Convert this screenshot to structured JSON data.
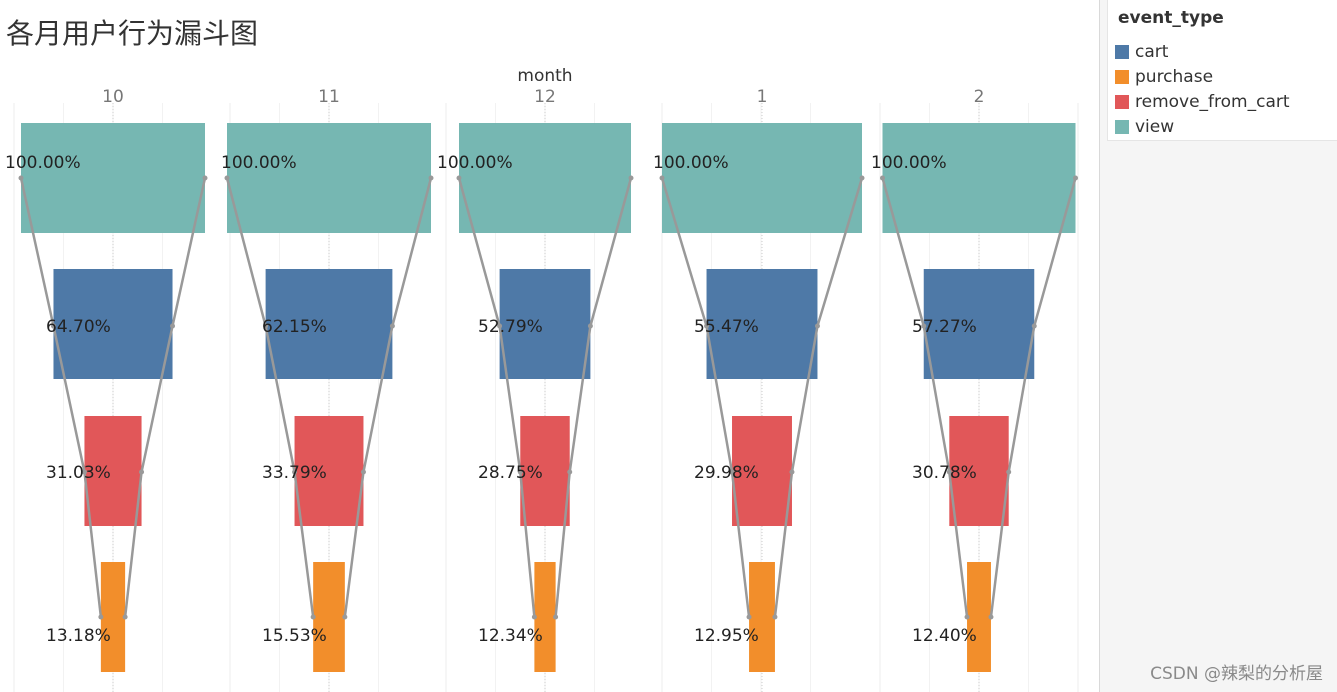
{
  "title": "各月用户行为漏斗图",
  "watermark": "CSDN @辣梨的分析屋",
  "legend": {
    "title": "event_type",
    "items": [
      {
        "label": "cart",
        "color": "#4e79a7"
      },
      {
        "label": "purchase",
        "color": "#f28e2b"
      },
      {
        "label": "remove_from_cart",
        "color": "#e15759"
      },
      {
        "label": "view",
        "color": "#76b7b2"
      }
    ]
  },
  "colors": {
    "view": "#76b7b2",
    "cart": "#4e79a7",
    "remove_from_cart": "#e15759",
    "purchase": "#f28e2b",
    "funnel_line": "#999999"
  },
  "chart_data": {
    "type": "bar",
    "title": "各月用户行为漏斗图",
    "xlabel": "month",
    "ylabel": "",
    "categories": [
      "10",
      "11",
      "12",
      "1",
      "2"
    ],
    "stages": [
      "view",
      "cart",
      "remove_from_cart",
      "purchase"
    ],
    "series": [
      {
        "name": "view",
        "values": [
          100.0,
          100.0,
          100.0,
          100.0,
          100.0
        ],
        "labels": [
          "100.00%",
          "100.00%",
          "100.00%",
          "100.00%",
          "100.00%"
        ]
      },
      {
        "name": "cart",
        "values": [
          64.7,
          62.15,
          52.79,
          55.47,
          57.27
        ],
        "labels": [
          "64.70%",
          "62.15%",
          "52.79%",
          "55.47%",
          "57.27%"
        ]
      },
      {
        "name": "remove_from_cart",
        "values": [
          31.03,
          33.79,
          28.75,
          29.98,
          30.78
        ],
        "labels": [
          "31.03%",
          "33.79%",
          "28.75%",
          "29.98%",
          "30.78%"
        ]
      },
      {
        "name": "purchase",
        "values": [
          13.18,
          15.53,
          12.34,
          12.95,
          12.4
        ],
        "labels": [
          "13.18%",
          "15.53%",
          "12.34%",
          "12.95%",
          "12.40%"
        ]
      }
    ],
    "grid": true,
    "legend_position": "top-right"
  }
}
